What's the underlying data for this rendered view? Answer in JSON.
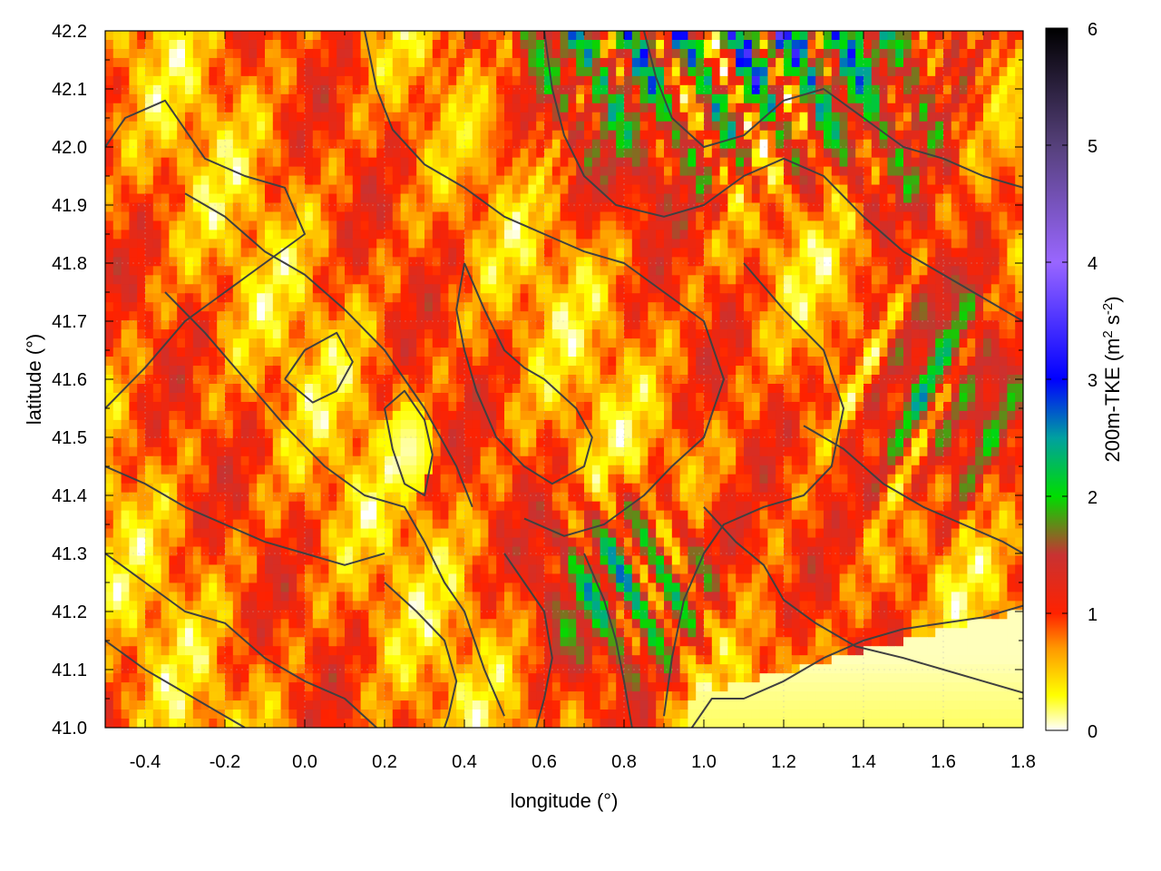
{
  "chart_data": {
    "type": "heatmap",
    "title": "",
    "xlabel": "longitude (°)",
    "ylabel": "latitude (°)",
    "xlim": [
      -0.5,
      1.8
    ],
    "ylim": [
      41.0,
      42.2
    ],
    "x_ticks": [
      "-0.4",
      "-0.2",
      "0.0",
      "0.2",
      "0.4",
      "0.6",
      "0.8",
      "1.0",
      "1.2",
      "1.4",
      "1.6",
      "1.8"
    ],
    "y_ticks": [
      "41.0",
      "41.1",
      "41.2",
      "41.3",
      "41.4",
      "41.5",
      "41.6",
      "41.7",
      "41.8",
      "41.9",
      "42.0",
      "42.1",
      "42.2"
    ],
    "x_tick_values": [
      -0.4,
      -0.2,
      0.0,
      0.2,
      0.4,
      0.6,
      0.8,
      1.0,
      1.2,
      1.4,
      1.6,
      1.8
    ],
    "y_tick_values": [
      41.0,
      41.1,
      41.2,
      41.3,
      41.4,
      41.5,
      41.6,
      41.7,
      41.8,
      41.9,
      42.0,
      42.1,
      42.2
    ],
    "grid": true,
    "colorbar": {
      "label_main": "200m-TKE (m",
      "label_sup1": "2",
      "label_mid": " s",
      "label_sup2": "-2",
      "label_end": ")",
      "range": [
        0,
        6
      ],
      "ticks": [
        "0",
        "1",
        "2",
        "3",
        "4",
        "5",
        "6"
      ],
      "tick_values": [
        0,
        1,
        2,
        3,
        4,
        5,
        6
      ],
      "stops": [
        {
          "v": 0.0,
          "color": "#ffffff"
        },
        {
          "v": 0.3,
          "color": "#ffff00"
        },
        {
          "v": 0.7,
          "color": "#ff9900"
        },
        {
          "v": 1.0,
          "color": "#ff2200"
        },
        {
          "v": 1.5,
          "color": "#c83232"
        },
        {
          "v": 2.0,
          "color": "#00dd00"
        },
        {
          "v": 2.5,
          "color": "#00a0a0"
        },
        {
          "v": 3.0,
          "color": "#0000ff"
        },
        {
          "v": 4.0,
          "color": "#9966ff"
        },
        {
          "v": 5.0,
          "color": "#55407a"
        },
        {
          "v": 6.0,
          "color": "#000000"
        }
      ]
    },
    "contour_color": "#404040",
    "contours": [
      [
        [
          -0.5,
          42.0
        ],
        [
          -0.45,
          42.05
        ],
        [
          -0.35,
          42.08
        ],
        [
          -0.25,
          41.98
        ],
        [
          -0.15,
          41.95
        ],
        [
          -0.05,
          41.93
        ],
        [
          0.0,
          41.85
        ],
        [
          -0.1,
          41.8
        ],
        [
          -0.2,
          41.75
        ],
        [
          -0.3,
          41.7
        ],
        [
          -0.4,
          41.62
        ],
        [
          -0.5,
          41.55
        ]
      ],
      [
        [
          -0.3,
          41.92
        ],
        [
          -0.2,
          41.88
        ],
        [
          -0.1,
          41.82
        ],
        [
          0.0,
          41.78
        ],
        [
          0.1,
          41.72
        ],
        [
          0.2,
          41.65
        ],
        [
          0.3,
          41.55
        ],
        [
          0.38,
          41.45
        ],
        [
          0.42,
          41.38
        ]
      ],
      [
        [
          -0.35,
          41.75
        ],
        [
          -0.25,
          41.68
        ],
        [
          -0.15,
          41.6
        ],
        [
          -0.05,
          41.52
        ],
        [
          0.05,
          41.45
        ],
        [
          0.15,
          41.4
        ],
        [
          0.25,
          41.38
        ],
        [
          0.3,
          41.32
        ],
        [
          0.35,
          41.25
        ],
        [
          0.4,
          41.2
        ],
        [
          0.45,
          41.1
        ],
        [
          0.5,
          41.02
        ]
      ],
      [
        [
          -0.5,
          41.45
        ],
        [
          -0.4,
          41.42
        ],
        [
          -0.3,
          41.38
        ],
        [
          -0.2,
          41.35
        ],
        [
          -0.1,
          41.32
        ],
        [
          0.0,
          41.3
        ],
        [
          0.1,
          41.28
        ],
        [
          0.2,
          41.3
        ]
      ],
      [
        [
          -0.5,
          41.3
        ],
        [
          -0.4,
          41.25
        ],
        [
          -0.3,
          41.2
        ],
        [
          -0.2,
          41.18
        ],
        [
          -0.1,
          41.12
        ],
        [
          0.0,
          41.08
        ],
        [
          0.1,
          41.05
        ],
        [
          0.18,
          41.0
        ]
      ],
      [
        [
          -0.5,
          41.15
        ],
        [
          -0.4,
          41.1
        ],
        [
          -0.3,
          41.06
        ],
        [
          -0.2,
          41.02
        ],
        [
          -0.15,
          41.0
        ]
      ],
      [
        [
          0.2,
          41.55
        ],
        [
          0.22,
          41.48
        ],
        [
          0.25,
          41.42
        ],
        [
          0.3,
          41.4
        ],
        [
          0.32,
          41.47
        ],
        [
          0.3,
          41.53
        ],
        [
          0.25,
          41.58
        ],
        [
          0.2,
          41.55
        ]
      ],
      [
        [
          0.15,
          42.2
        ],
        [
          0.18,
          42.1
        ],
        [
          0.22,
          42.03
        ],
        [
          0.3,
          41.97
        ],
        [
          0.4,
          41.93
        ],
        [
          0.5,
          41.88
        ],
        [
          0.6,
          41.85
        ],
        [
          0.7,
          41.82
        ],
        [
          0.8,
          41.8
        ],
        [
          0.9,
          41.75
        ],
        [
          1.0,
          41.7
        ],
        [
          1.05,
          41.6
        ],
        [
          1.0,
          41.5
        ],
        [
          0.92,
          41.45
        ],
        [
          0.85,
          41.4
        ],
        [
          0.75,
          41.35
        ],
        [
          0.65,
          41.33
        ],
        [
          0.55,
          41.36
        ]
      ],
      [
        [
          0.4,
          41.8
        ],
        [
          0.45,
          41.72
        ],
        [
          0.5,
          41.65
        ],
        [
          0.55,
          41.62
        ],
        [
          0.6,
          41.6
        ],
        [
          0.68,
          41.55
        ],
        [
          0.72,
          41.5
        ],
        [
          0.7,
          41.45
        ],
        [
          0.62,
          41.42
        ],
        [
          0.55,
          41.45
        ],
        [
          0.48,
          41.5
        ],
        [
          0.43,
          41.58
        ],
        [
          0.4,
          41.65
        ],
        [
          0.38,
          41.72
        ],
        [
          0.4,
          41.8
        ]
      ],
      [
        [
          0.6,
          42.2
        ],
        [
          0.62,
          42.1
        ],
        [
          0.65,
          42.02
        ],
        [
          0.7,
          41.95
        ],
        [
          0.78,
          41.9
        ],
        [
          0.9,
          41.88
        ],
        [
          1.0,
          41.9
        ],
        [
          1.1,
          41.95
        ],
        [
          1.2,
          41.98
        ],
        [
          1.3,
          41.95
        ],
        [
          1.4,
          41.88
        ],
        [
          1.5,
          41.82
        ],
        [
          1.6,
          41.78
        ],
        [
          1.7,
          41.74
        ],
        [
          1.8,
          41.7
        ]
      ],
      [
        [
          0.85,
          42.2
        ],
        [
          0.88,
          42.12
        ],
        [
          0.92,
          42.05
        ],
        [
          1.0,
          42.0
        ],
        [
          1.1,
          42.02
        ],
        [
          1.2,
          42.08
        ],
        [
          1.3,
          42.1
        ],
        [
          1.4,
          42.05
        ],
        [
          1.5,
          42.0
        ],
        [
          1.6,
          41.98
        ],
        [
          1.7,
          41.95
        ],
        [
          1.8,
          41.93
        ]
      ],
      [
        [
          1.1,
          41.8
        ],
        [
          1.2,
          41.72
        ],
        [
          1.3,
          41.65
        ],
        [
          1.35,
          41.55
        ],
        [
          1.32,
          41.45
        ],
        [
          1.25,
          41.4
        ],
        [
          1.15,
          41.38
        ],
        [
          1.05,
          41.35
        ],
        [
          1.0,
          41.3
        ],
        [
          0.95,
          41.22
        ],
        [
          0.92,
          41.12
        ],
        [
          0.9,
          41.02
        ]
      ],
      [
        [
          1.25,
          41.52
        ],
        [
          1.35,
          41.48
        ],
        [
          1.45,
          41.42
        ],
        [
          1.55,
          41.38
        ],
        [
          1.65,
          41.35
        ],
        [
          1.75,
          41.32
        ],
        [
          1.8,
          41.3
        ]
      ],
      [
        [
          1.0,
          41.38
        ],
        [
          1.08,
          41.32
        ],
        [
          1.15,
          41.28
        ],
        [
          1.2,
          41.22
        ],
        [
          1.28,
          41.18
        ],
        [
          1.38,
          41.14
        ],
        [
          1.5,
          41.12
        ],
        [
          1.6,
          41.1
        ],
        [
          1.7,
          41.08
        ],
        [
          1.8,
          41.06
        ]
      ],
      [
        [
          0.97,
          41.0
        ],
        [
          1.02,
          41.05
        ],
        [
          1.1,
          41.05
        ],
        [
          1.2,
          41.08
        ],
        [
          1.3,
          41.12
        ],
        [
          1.4,
          41.15
        ],
        [
          1.5,
          41.17
        ],
        [
          1.6,
          41.18
        ],
        [
          1.7,
          41.19
        ],
        [
          1.8,
          41.21
        ]
      ],
      [
        [
          0.5,
          41.3
        ],
        [
          0.55,
          41.25
        ],
        [
          0.6,
          41.2
        ],
        [
          0.62,
          41.12
        ],
        [
          0.6,
          41.05
        ],
        [
          0.58,
          41.0
        ]
      ],
      [
        [
          0.7,
          41.3
        ],
        [
          0.75,
          41.22
        ],
        [
          0.78,
          41.15
        ],
        [
          0.8,
          41.08
        ],
        [
          0.82,
          41.0
        ]
      ],
      [
        [
          0.2,
          41.25
        ],
        [
          0.28,
          41.2
        ],
        [
          0.35,
          41.15
        ],
        [
          0.38,
          41.08
        ],
        [
          0.36,
          41.02
        ],
        [
          0.35,
          41.0
        ]
      ],
      [
        [
          -0.05,
          41.6
        ],
        [
          0.0,
          41.65
        ],
        [
          0.08,
          41.68
        ],
        [
          0.12,
          41.63
        ],
        [
          0.08,
          41.58
        ],
        [
          0.02,
          41.56
        ],
        [
          -0.05,
          41.6
        ]
      ]
    ]
  }
}
